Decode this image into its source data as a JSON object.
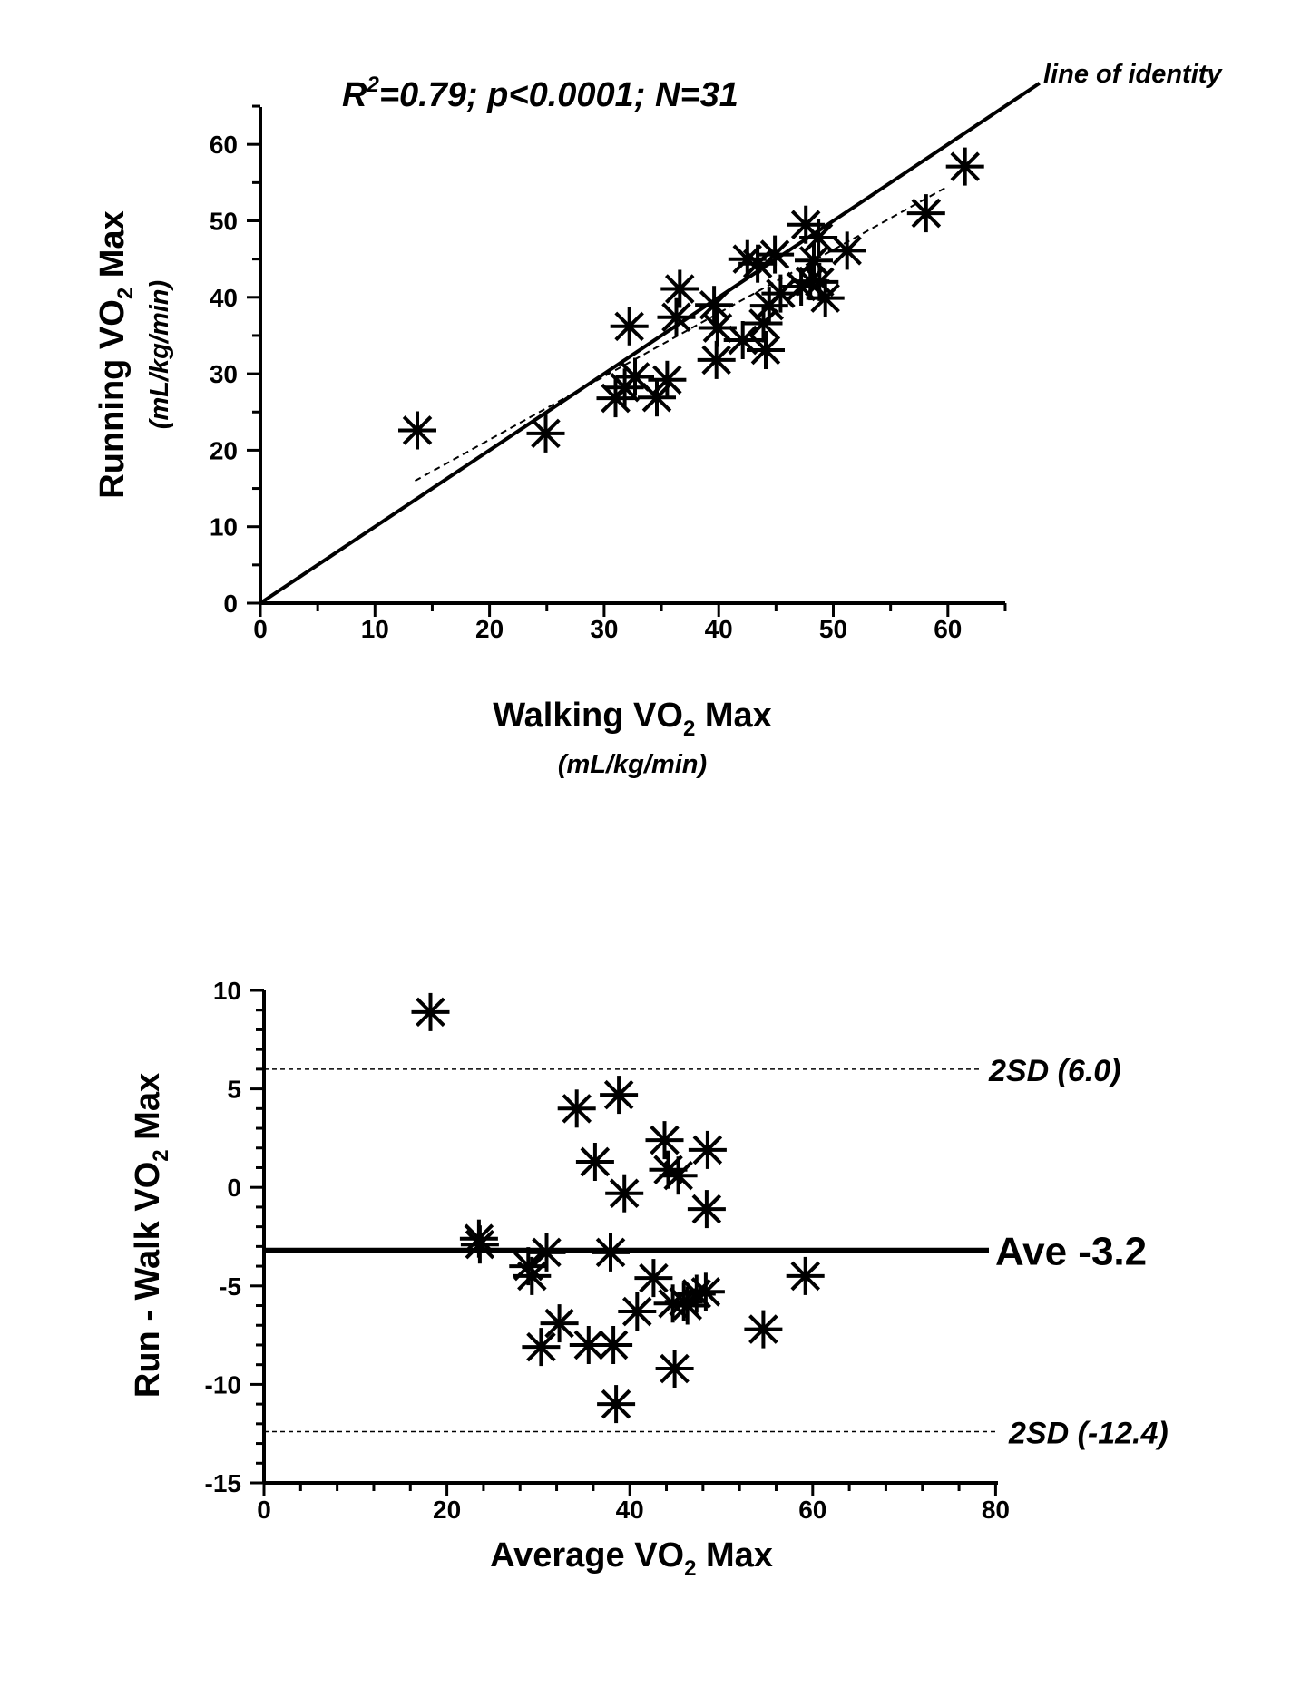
{
  "chart_data": [
    {
      "type": "scatter",
      "annotation_main": "=0.79; p<0.0001; N=31",
      "annotation_r": "R",
      "annotation_sup": "2",
      "identity_label": "line of identity",
      "xlabel": "Walking VO",
      "xlabel_sub": "2",
      "xlabel_tail": " Max",
      "xunit": "(mL/kg/min)",
      "ylabel": "Running VO",
      "ylabel_sub": "2",
      "ylabel_tail": " Max",
      "yunit": "(mL/kg/min)",
      "xlim": [
        0,
        65
      ],
      "ylim": [
        0,
        65
      ],
      "xticks": [
        "0",
        "10",
        "20",
        "30",
        "40",
        "50",
        "60"
      ],
      "yticks": [
        "0",
        "10",
        "20",
        "30",
        "40",
        "50",
        "60"
      ],
      "identity_line": {
        "x": [
          0,
          68
        ],
        "y": [
          0,
          68
        ]
      },
      "regression_line": {
        "x": [
          13.5,
          60
        ],
        "y": [
          16,
          54.5
        ]
      },
      "points": [
        {
          "x": 13.7,
          "y": 22.6
        },
        {
          "x": 24.9,
          "y": 22.2
        },
        {
          "x": 31.0,
          "y": 26.8
        },
        {
          "x": 31.8,
          "y": 28.2
        },
        {
          "x": 32.2,
          "y": 36.2
        },
        {
          "x": 32.7,
          "y": 29.6
        },
        {
          "x": 34.6,
          "y": 26.9
        },
        {
          "x": 35.5,
          "y": 29.2
        },
        {
          "x": 36.3,
          "y": 37.4
        },
        {
          "x": 36.6,
          "y": 41.1
        },
        {
          "x": 39.6,
          "y": 39.0
        },
        {
          "x": 39.9,
          "y": 36.0
        },
        {
          "x": 39.8,
          "y": 31.8
        },
        {
          "x": 42.1,
          "y": 34.4
        },
        {
          "x": 42.5,
          "y": 45.0
        },
        {
          "x": 43.4,
          "y": 44.4
        },
        {
          "x": 43.9,
          "y": 36.6
        },
        {
          "x": 44.1,
          "y": 33.1
        },
        {
          "x": 44.4,
          "y": 38.9
        },
        {
          "x": 44.9,
          "y": 45.6
        },
        {
          "x": 45.4,
          "y": 40.5
        },
        {
          "x": 47.2,
          "y": 41.4
        },
        {
          "x": 47.6,
          "y": 49.5
        },
        {
          "x": 48.0,
          "y": 42.1
        },
        {
          "x": 48.3,
          "y": 44.8
        },
        {
          "x": 48.7,
          "y": 47.8
        },
        {
          "x": 48.8,
          "y": 42.0
        },
        {
          "x": 49.3,
          "y": 39.9
        },
        {
          "x": 51.2,
          "y": 46.1
        },
        {
          "x": 58.1,
          "y": 51.0
        },
        {
          "x": 61.5,
          "y": 57.1
        }
      ]
    },
    {
      "type": "scatter",
      "xlabel": "Average VO",
      "xlabel_sub": "2",
      "xlabel_tail": " Max",
      "ylabel": "Run - Walk VO",
      "ylabel_sub": "2",
      "ylabel_tail": " Max",
      "xlim": [
        0,
        80
      ],
      "ylim": [
        -15,
        10
      ],
      "xticks": [
        "0",
        "20",
        "40",
        "60",
        "80"
      ],
      "yticks": [
        "-15",
        "-10",
        "-5",
        "0",
        "5",
        "10"
      ],
      "mean_line": {
        "y": -3.2,
        "label": "Ave -3.2"
      },
      "upper_limit": {
        "y": 6.0,
        "label": "2SD (6.0)"
      },
      "lower_limit": {
        "y": -12.4,
        "label": "2SD (-12.4)"
      },
      "points": [
        {
          "x": 18.2,
          "y": 8.9
        },
        {
          "x": 23.5,
          "y": -2.6
        },
        {
          "x": 23.6,
          "y": -2.9
        },
        {
          "x": 28.9,
          "y": -4.0
        },
        {
          "x": 29.3,
          "y": -4.5
        },
        {
          "x": 30.3,
          "y": -8.1
        },
        {
          "x": 30.9,
          "y": -3.3
        },
        {
          "x": 32.3,
          "y": -6.9
        },
        {
          "x": 34.2,
          "y": 4.0
        },
        {
          "x": 35.5,
          "y": -8.0
        },
        {
          "x": 36.2,
          "y": 1.3
        },
        {
          "x": 37.9,
          "y": -3.3
        },
        {
          "x": 38.2,
          "y": -8.0
        },
        {
          "x": 38.8,
          "y": 4.7
        },
        {
          "x": 38.5,
          "y": -11.0
        },
        {
          "x": 39.4,
          "y": -0.3
        },
        {
          "x": 40.8,
          "y": -6.3
        },
        {
          "x": 42.6,
          "y": -4.6
        },
        {
          "x": 43.8,
          "y": 2.4
        },
        {
          "x": 44.2,
          "y": 0.9
        },
        {
          "x": 44.7,
          "y": -5.9
        },
        {
          "x": 44.9,
          "y": -9.2
        },
        {
          "x": 45.3,
          "y": 0.6
        },
        {
          "x": 45.9,
          "y": -5.8
        },
        {
          "x": 46.3,
          "y": -6.0
        },
        {
          "x": 47.3,
          "y": -5.4
        },
        {
          "x": 48.3,
          "y": -5.3
        },
        {
          "x": 48.4,
          "y": -1.1
        },
        {
          "x": 48.5,
          "y": 1.9
        },
        {
          "x": 54.6,
          "y": -7.2
        },
        {
          "x": 59.2,
          "y": -4.5
        }
      ]
    }
  ]
}
